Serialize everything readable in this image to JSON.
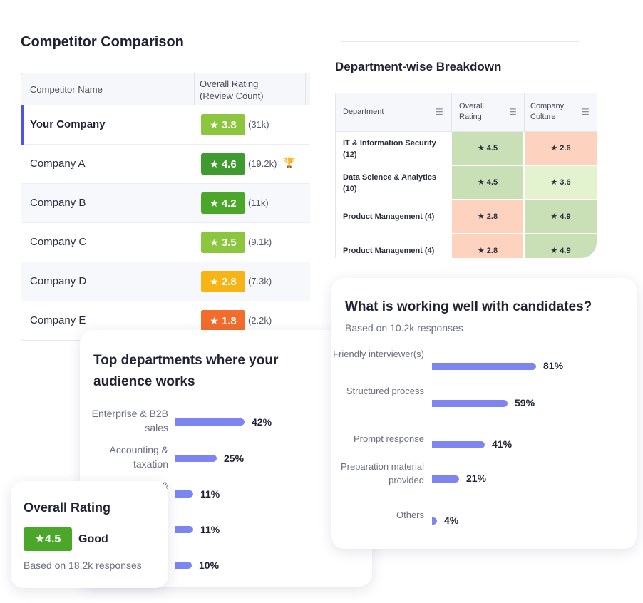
{
  "competitor": {
    "title": "Competitor Comparison",
    "col_name": "Competitor Name",
    "col_rating": "Overall Rating (Review Count)",
    "rows": [
      {
        "name": "Your Company",
        "rating": "3.8",
        "count": "(31k)",
        "color": "#8cc63f"
      },
      {
        "name": "Company A",
        "rating": "4.6",
        "count": "(19.2k)",
        "color": "#3f9a2f"
      },
      {
        "name": "Company B",
        "rating": "4.2",
        "count": "(11k)",
        "color": "#4aa72a"
      },
      {
        "name": "Company C",
        "rating": "3.5",
        "count": "(9.1k)",
        "color": "#8cc63f"
      },
      {
        "name": "Company D",
        "rating": "2.8",
        "count": "(7.3k)",
        "color": "#f7b515"
      },
      {
        "name": "Company E",
        "rating": "1.8",
        "count": "(2.2k)",
        "color": "#f26d2b"
      }
    ],
    "star": "★",
    "trophy": "🏆"
  },
  "department": {
    "title": "Department-wise Breakdown",
    "columns": [
      "Department",
      "Overall Rating",
      "Company Culture"
    ],
    "rows": [
      {
        "name": "IT & Information Security (12)",
        "overall": "★ 4.5",
        "culture": "★ 2.6",
        "overall_color": "#c9dfb6",
        "culture_color": "#fdd3c0"
      },
      {
        "name": "Data Science & Analytics (10)",
        "overall": "★ 4.5",
        "culture": "★ 3.6",
        "overall_color": "#c9dfb6",
        "culture_color": "#e3f2cf"
      },
      {
        "name": "Product Management (4)",
        "overall": "★ 2.8",
        "culture": "★ 4.9",
        "overall_color": "#fdd3c0",
        "culture_color": "#c9dfb6"
      },
      {
        "name": "Product Management (4)",
        "overall": "★ 2.8",
        "culture": "★ 4.9",
        "overall_color": "#fdd3c0",
        "culture_color": "#c9dfb6"
      }
    ]
  },
  "working_well": {
    "title": "What is working well with candidates?",
    "subtitle": "Based on 10.2k responses",
    "items": [
      {
        "label": "Friendly interviewer(s)",
        "value": 81,
        "text": "81%"
      },
      {
        "label": "Structured process",
        "value": 59,
        "text": "59%"
      },
      {
        "label": "Prompt response",
        "value": 41,
        "text": "41%"
      },
      {
        "label": "Preparation material provided",
        "value": 21,
        "text": "21%"
      },
      {
        "label": "Others",
        "value": 4,
        "text": "4%"
      }
    ]
  },
  "top_departments": {
    "title": "Top departments where your audience works",
    "items": [
      {
        "label": "Enterprise & B2B sales",
        "value": 42,
        "text": "42%"
      },
      {
        "label": "Accounting & taxation",
        "value": 25,
        "text": "25%"
      },
      {
        "label": "&",
        "value": 11,
        "text": "11%"
      },
      {
        "label": "",
        "value": 11,
        "text": "11%"
      },
      {
        "label": "",
        "value": 10,
        "text": "10%"
      }
    ]
  },
  "overall_rating": {
    "title": "Overall Rating",
    "badge": "★4.5",
    "label": "Good",
    "subtitle": "Based on 18.2k responses",
    "color": "#4aa72a"
  }
}
